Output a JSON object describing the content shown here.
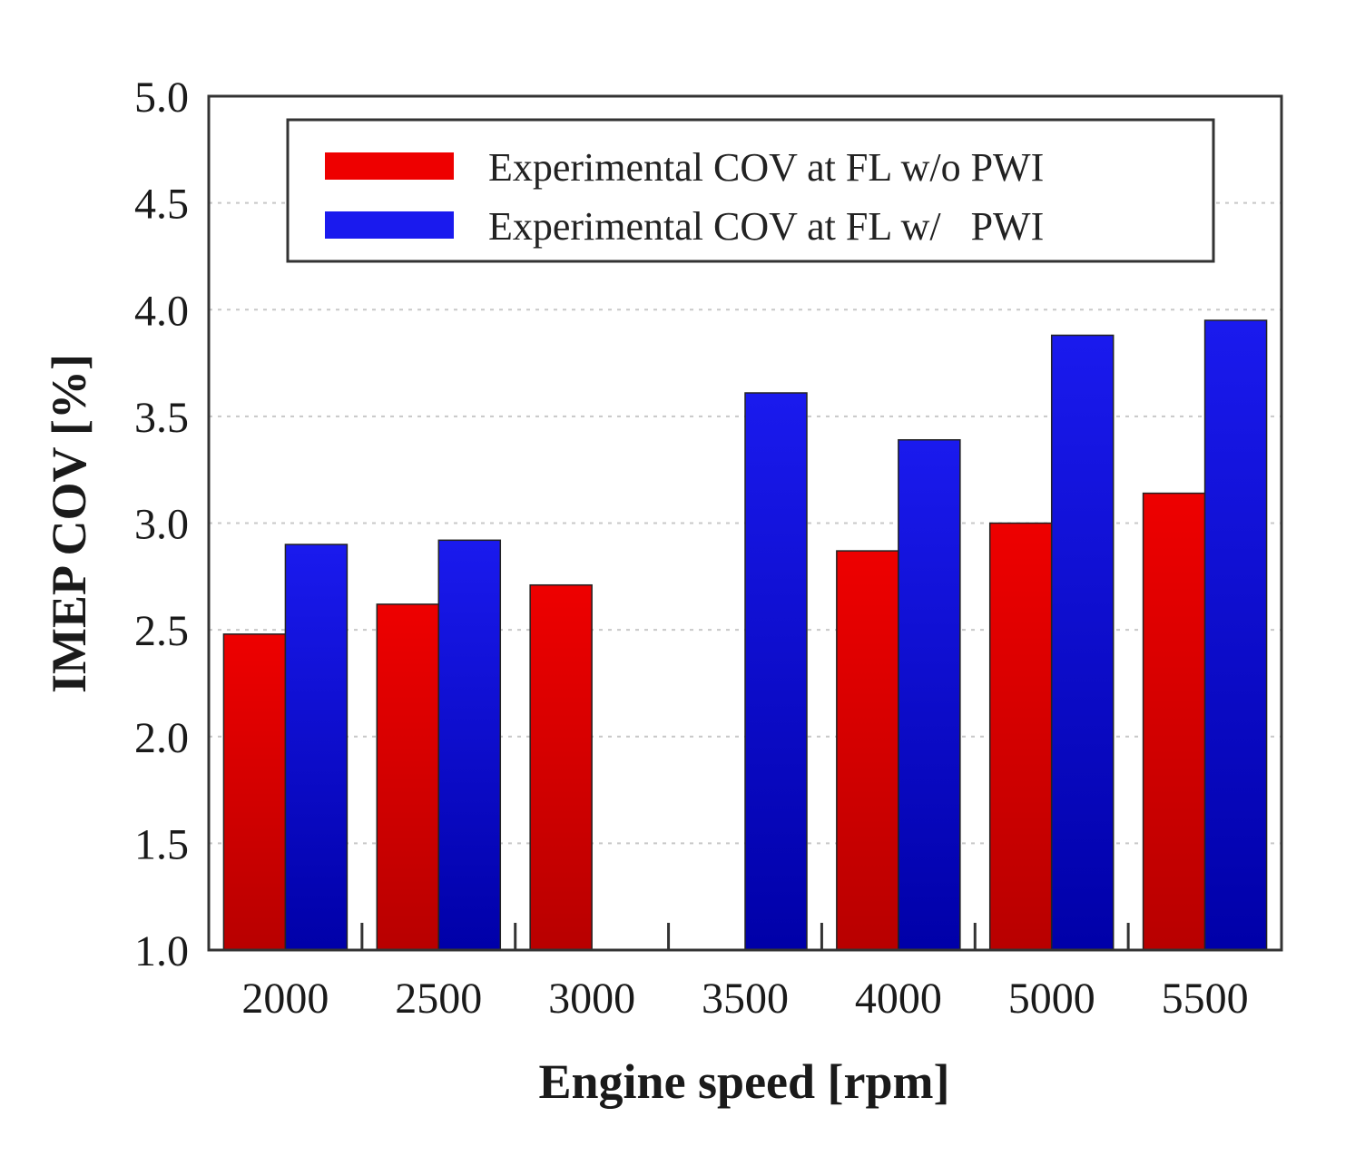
{
  "chart_data": {
    "type": "bar",
    "title": "",
    "xlabel": "Engine speed [rpm]",
    "ylabel": "IMEP COV [%]",
    "ylim": [
      1.0,
      5.0
    ],
    "yticks": [
      "1.0",
      "1.5",
      "2.0",
      "2.5",
      "3.0",
      "3.5",
      "4.0",
      "4.5",
      "5.0"
    ],
    "grid": true,
    "legend_position": "top-right",
    "categories": [
      "2000",
      "2500",
      "3000",
      "3500",
      "4000",
      "5000",
      "5500"
    ],
    "series": [
      {
        "name": "Experimental COV at FL w/o PWI",
        "color": "#ee0000",
        "color_dark": "#b80000",
        "values": [
          2.48,
          2.62,
          2.71,
          null,
          2.87,
          3.0,
          3.14
        ]
      },
      {
        "name": "Experimental COV at FL w/   PWI",
        "color": "#1a1aee",
        "color_dark": "#0000a8",
        "values": [
          2.9,
          2.92,
          null,
          3.61,
          3.39,
          3.88,
          3.95
        ]
      }
    ]
  }
}
